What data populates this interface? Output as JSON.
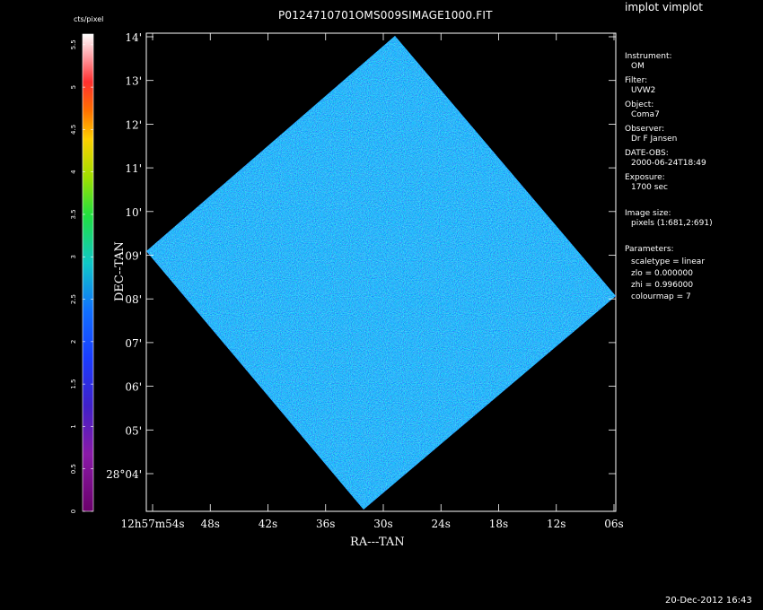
{
  "app_title": "implot vimplot",
  "plot_title": "P0124710701OMS009SIMAGE1000.FIT",
  "timestamp": "20-Dec-2012 16:43",
  "colorbar": {
    "label": "cts/pixel",
    "ticks": [
      "0",
      "0.5",
      "1",
      "1.5",
      "2",
      "2.5",
      "3",
      "3.5",
      "4",
      "4.5",
      "5",
      "5.5"
    ]
  },
  "axes": {
    "xlabel": "RA---TAN",
    "ylabel": "DEC--TAN",
    "x_ticks": [
      "12h57m54s",
      "48s",
      "42s",
      "36s",
      "30s",
      "24s",
      "18s",
      "12s",
      "06s"
    ],
    "y_ticks": [
      "28°04'",
      "05'",
      "06'",
      "07'",
      "08'",
      "09'",
      "10'",
      "11'",
      "12'",
      "13'",
      "14'"
    ]
  },
  "info": {
    "instrument_label": "Instrument:",
    "instrument": "OM",
    "filter_label": "Filter:",
    "filter": "UVW2",
    "object_label": "Object:",
    "object": "Coma7",
    "observer_label": "Observer:",
    "observer": "Dr F Jansen",
    "date_label": "DATE-OBS:",
    "date": "2000-06-24T18:49",
    "exposure_label": "Exposure:",
    "exposure": "1700 sec",
    "image_size_label": "Image size:",
    "image_size": "pixels (1:681,2:691)",
    "parameters_label": "Parameters:",
    "scaletype": "scaletype = linear",
    "zlo": "zlo = 0.000000",
    "zhi": "zhi = 0.996000",
    "colourmap": "colourmap =   7"
  }
}
